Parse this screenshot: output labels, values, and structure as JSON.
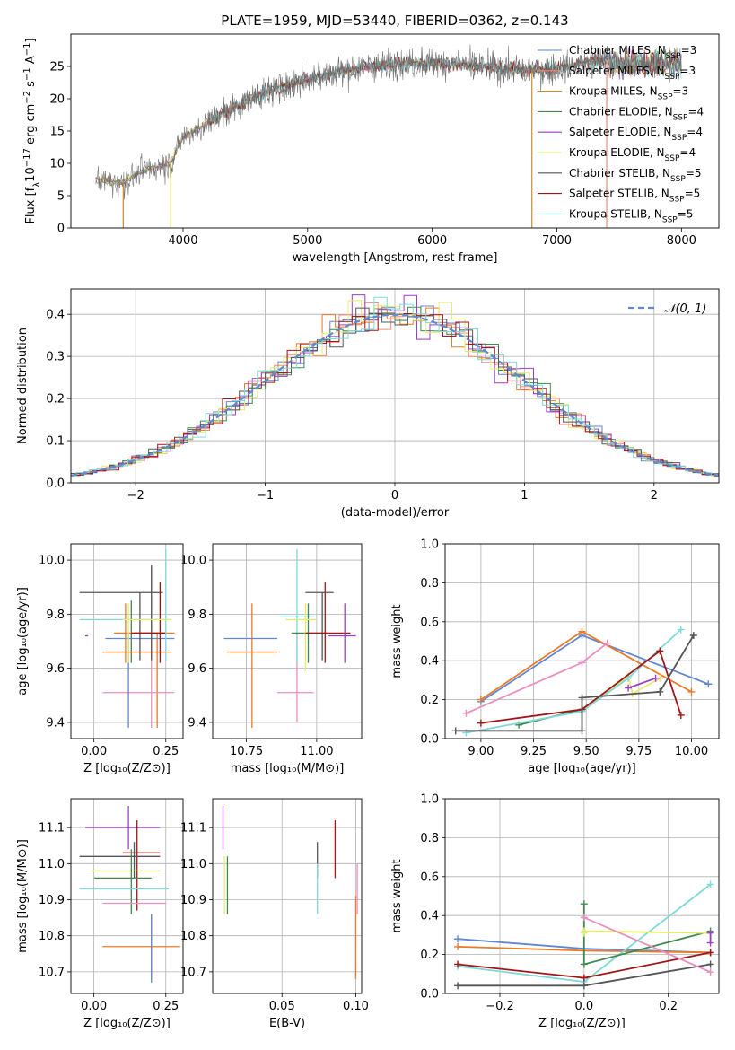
{
  "figure": {
    "title": "PLATE=1959, MJD=53440, FIBERID=0362, z=0.143"
  },
  "colors": {
    "chabrier_miles": "#5f87d3",
    "salpeter_miles": "#f08a77",
    "kroupa_miles": "#c98a2e",
    "chabrier_elodie": "#3f8a4f",
    "salpeter_elodie": "#9b3fc7",
    "kroupa_elodie": "#e7ec6b",
    "chabrier_stelib": "#555555",
    "salpeter_stelib": "#a31515",
    "kroupa_stelib": "#7fd9d9",
    "orange": "#ea7a28",
    "pink": "#e98fc0",
    "green": "#6bb36b",
    "olive": "#a2c33a",
    "blue": "#5f87d3"
  },
  "chart_data": [
    {
      "id": "spectrum",
      "type": "line",
      "xlabel": "wavelength [Angstrom, rest frame]",
      "xlim": [
        3100,
        8300
      ],
      "ylim": [
        0,
        30
      ],
      "xticks": [
        "4000",
        "5000",
        "6000",
        "7000",
        "8000"
      ],
      "yticks": [
        "0",
        "5",
        "10",
        "15",
        "20",
        "25"
      ],
      "legend_position": "upper-right",
      "legend": [
        {
          "base": "Chabrier MILES, N",
          "sub": "SSP",
          "tail": "=3",
          "color": "#5f87d3"
        },
        {
          "base": "Salpeter MILES, N",
          "sub": "SSP",
          "tail": "=3",
          "color": "#f08a77"
        },
        {
          "base": "Kroupa MILES, N",
          "sub": "SSP",
          "tail": "=3",
          "color": "#c98a2e"
        },
        {
          "base": "Chabrier ELODIE, N",
          "sub": "SSP",
          "tail": "=4",
          "color": "#3f8a4f"
        },
        {
          "base": "Salpeter ELODIE, N",
          "sub": "SSP",
          "tail": "=4",
          "color": "#9b3fc7"
        },
        {
          "base": "Kroupa ELODIE, N",
          "sub": "SSP",
          "tail": "=4",
          "color": "#e7ec6b"
        },
        {
          "base": "Chabrier STELIB, N",
          "sub": "SSP",
          "tail": "=5",
          "color": "#555555"
        },
        {
          "base": "Salpeter STELIB, N",
          "sub": "SSP",
          "tail": "=5",
          "color": "#a31515"
        },
        {
          "base": "Kroupa STELIB, N",
          "sub": "SSP",
          "tail": "=5",
          "color": "#7fd9d9"
        }
      ],
      "continuum_x": [
        3300,
        3500,
        3700,
        3900,
        4000,
        4300,
        4600,
        4900,
        5200,
        5500,
        5800,
        6100,
        6400,
        6700,
        7000,
        7200,
        7400
      ],
      "continuum_y": [
        7.5,
        7.0,
        9.0,
        10.0,
        14.0,
        17.5,
        20.5,
        22.5,
        24.0,
        25.0,
        25.5,
        25.5,
        25.0,
        24.5,
        24.5,
        25.5,
        26.0
      ],
      "data_x_range": [
        3300,
        8000
      ],
      "stelib_x_range": [
        4200,
        8000
      ]
    },
    {
      "id": "residuals",
      "type": "step",
      "xlabel": "(data-model)/error",
      "ylabel": "Normed distribution",
      "xlim": [
        -2.5,
        2.5
      ],
      "ylim": [
        0,
        0.46
      ],
      "xticks": [
        "−2",
        "−1",
        "0",
        "1",
        "2"
      ],
      "yticks": [
        "0.0",
        "0.1",
        "0.2",
        "0.3",
        "0.4"
      ],
      "legend_position": "upper-right",
      "legend": [
        {
          "label": "𝒩(0, 1)",
          "color": "#5f87d3"
        }
      ],
      "bin_width": 0.1
    },
    {
      "id": "age-vs-z",
      "type": "errorbar",
      "xlabel": "Z [log₁₀(Z/Z⊙)]",
      "ylabel": "age  [log₁₀(age/yr)]",
      "xlim": [
        -0.08,
        0.31
      ],
      "ylim": [
        9.34,
        10.06
      ],
      "xticks": [
        "0.00",
        "0.25"
      ],
      "yticks": [
        "9.4",
        "9.6",
        "9.8",
        "10.0"
      ],
      "points": [
        {
          "x": 0.13,
          "y": 9.85,
          "xl": 0.0,
          "xh": 0.0,
          "yl": 9.62,
          "yh": 9.85,
          "color": "#3f8a4f"
        },
        {
          "x": 0.22,
          "y": 9.73,
          "xl": 0.07,
          "xh": 0.28,
          "yl": 9.38,
          "yh": 9.73,
          "color": "#ea7a28"
        },
        {
          "x": 0.2,
          "y": 9.51,
          "xl": 0.03,
          "xh": 0.28,
          "yl": 9.38,
          "yh": 9.98,
          "color": "#e98fc0"
        },
        {
          "x": 0.12,
          "y": 9.71,
          "xl": 0.04,
          "xh": 0.28,
          "yl": 9.38,
          "yh": 9.73,
          "color": "#5f87d3"
        },
        {
          "x": 0.11,
          "y": 9.66,
          "xl": 0.03,
          "xh": 0.27,
          "yl": 9.62,
          "yh": 9.84,
          "color": "#ea7a28"
        },
        {
          "x": 0.16,
          "y": 9.88,
          "xl": -0.05,
          "xh": 0.24,
          "yl": 9.63,
          "yh": 9.88,
          "color": "#555555"
        },
        {
          "x": 0.2,
          "y": 9.73,
          "xl": 0.14,
          "xh": 0.25,
          "yl": 9.63,
          "yh": 9.98,
          "color": "#555555"
        },
        {
          "x": 0.23,
          "y": 9.73,
          "xl": 0.13,
          "xh": 0.25,
          "yl": 9.62,
          "yh": 9.92,
          "color": "#a31515"
        },
        {
          "x": 0.25,
          "y": 9.78,
          "xl": -0.05,
          "xh": 0.26,
          "yl": 9.63,
          "yh": 10.04,
          "color": "#7fd9d9"
        },
        {
          "x": 0.12,
          "y": 9.78,
          "xl": 0.1,
          "xh": 0.27,
          "yl": 9.62,
          "yh": 9.84,
          "color": "#e7ec6b"
        },
        {
          "x": -0.02,
          "y": 9.72,
          "xl": -0.03,
          "xh": -0.02,
          "yl": 9.72,
          "yh": 9.72,
          "color": "#9b3fc7"
        }
      ]
    },
    {
      "id": "age-vs-mass",
      "type": "errorbar",
      "xlabel": "mass [log₁₀(M/M⊙)]",
      "xlim": [
        10.63,
        11.16
      ],
      "ylim": [
        9.34,
        10.06
      ],
      "xticks": [
        "10.75",
        "11.00"
      ],
      "yticks": [
        "9.4",
        "9.6",
        "9.8",
        "10.0"
      ],
      "points": [
        {
          "x": 10.77,
          "y": 9.66,
          "xl": 10.68,
          "xh": 10.86,
          "yl": 9.38,
          "yh": 9.84,
          "color": "#ea7a28"
        },
        {
          "x": 10.77,
          "y": 9.71,
          "xl": 10.67,
          "xh": 10.86,
          "yl": 9.71,
          "yh": 9.71,
          "color": "#5f87d3"
        },
        {
          "x": 10.93,
          "y": 9.51,
          "xl": 10.86,
          "xh": 10.99,
          "yl": 9.4,
          "yh": 9.73,
          "color": "#e98fc0"
        },
        {
          "x": 10.93,
          "y": 9.79,
          "xl": 10.87,
          "xh": 10.99,
          "yl": 9.62,
          "yh": 10.04,
          "color": "#7fd9d9"
        },
        {
          "x": 10.97,
          "y": 9.73,
          "xl": 10.91,
          "xh": 11.04,
          "yl": 9.62,
          "yh": 9.84,
          "color": "#3f8a4f"
        },
        {
          "x": 10.96,
          "y": 9.78,
          "xl": 10.89,
          "xh": 11.0,
          "yl": 9.59,
          "yh": 9.84,
          "color": "#e7ec6b"
        },
        {
          "x": 11.02,
          "y": 9.88,
          "xl": 10.96,
          "xh": 11.06,
          "yl": 9.63,
          "yh": 9.88,
          "color": "#555555"
        },
        {
          "x": 11.03,
          "y": 9.73,
          "xl": 10.96,
          "xh": 11.12,
          "yl": 9.62,
          "yh": 9.92,
          "color": "#a31515"
        },
        {
          "x": 11.1,
          "y": 9.72,
          "xl": 11.04,
          "xh": 11.14,
          "yl": 9.62,
          "yh": 9.84,
          "color": "#9b3fc7"
        }
      ]
    },
    {
      "id": "weight-vs-age",
      "type": "line",
      "xlabel": "age  [log₁₀(age/yr)]",
      "ylabel": "mass weight",
      "xlim": [
        8.83,
        10.13
      ],
      "ylim": [
        0,
        1
      ],
      "xticks": [
        "9.00",
        "9.25",
        "9.50",
        "9.75",
        "10.00"
      ],
      "yticks": [
        "0.0",
        "0.2",
        "0.4",
        "0.6",
        "0.8",
        "1.0"
      ],
      "series": [
        {
          "color": "#5f87d3",
          "x": [
            9.0,
            9.48,
            10.08
          ],
          "y": [
            0.19,
            0.53,
            0.28
          ]
        },
        {
          "color": "#ea7a28",
          "x": [
            9.0,
            9.48,
            10.0
          ],
          "y": [
            0.2,
            0.55,
            0.24
          ]
        },
        {
          "color": "#e98fc0",
          "x": [
            8.93,
            9.48,
            9.6
          ],
          "y": [
            0.13,
            0.39,
            0.49
          ]
        },
        {
          "color": "#3f8a4f",
          "x": [
            9.18,
            9.48,
            9.7
          ],
          "y": [
            0.07,
            0.15,
            0.32
          ]
        },
        {
          "color": "#e7ec6b",
          "x": [
            9.48,
            9.7,
            9.72,
            9.85
          ],
          "y": [
            0.15,
            0.32,
            0.23,
            0.31
          ]
        },
        {
          "color": "#7fd9d9",
          "x": [
            8.93,
            9.48,
            9.7,
            9.95
          ],
          "y": [
            0.03,
            0.14,
            0.31,
            0.56
          ]
        },
        {
          "color": "#9b3fc7",
          "x": [
            9.7,
            9.83
          ],
          "y": [
            0.26,
            0.31
          ]
        },
        {
          "color": "#a31515",
          "x": [
            9.0,
            9.48,
            9.85,
            9.95
          ],
          "y": [
            0.08,
            0.15,
            0.45,
            0.12
          ]
        },
        {
          "color": "#555555",
          "x": [
            8.88,
            9.48,
            9.48,
            9.85,
            10.01
          ],
          "y": [
            0.04,
            0.04,
            0.21,
            0.24,
            0.53
          ]
        }
      ]
    },
    {
      "id": "mass-vs-z",
      "type": "errorbar",
      "xlabel": "Z [log₁₀(Z/Z⊙)]",
      "ylabel": "mass [log₁₀(M/M⊙)]",
      "xlim": [
        -0.08,
        0.31
      ],
      "ylim": [
        10.64,
        11.18
      ],
      "xticks": [
        "0.00",
        "0.25"
      ],
      "yticks": [
        "10.7",
        "10.8",
        "10.9",
        "11.0",
        "11.1"
      ],
      "points": [
        {
          "x": 0.12,
          "y": 11.1,
          "xl": -0.03,
          "xh": 0.23,
          "yl": 11.04,
          "yh": 11.16,
          "color": "#9b3fc7"
        },
        {
          "x": 0.15,
          "y": 11.03,
          "xl": 0.1,
          "xh": 0.23,
          "yl": 10.87,
          "yh": 11.12,
          "color": "#a31515"
        },
        {
          "x": 0.14,
          "y": 11.02,
          "xl": -0.05,
          "xh": 0.23,
          "yl": 10.96,
          "yh": 11.06,
          "color": "#555555"
        },
        {
          "x": 0.12,
          "y": 10.98,
          "xl": -0.01,
          "xh": 0.23,
          "yl": 10.98,
          "yh": 10.98,
          "color": "#e7ec6b"
        },
        {
          "x": 0.13,
          "y": 10.96,
          "xl": 0.0,
          "xh": 0.2,
          "yl": 10.86,
          "yh": 11.04,
          "color": "#3f8a4f"
        },
        {
          "x": 0.1,
          "y": 10.93,
          "xl": -0.05,
          "xh": 0.26,
          "yl": 10.93,
          "yh": 10.93,
          "color": "#7fd9d9"
        },
        {
          "x": 0.2,
          "y": 10.89,
          "xl": 0.03,
          "xh": 0.25,
          "yl": 10.89,
          "yh": 10.89,
          "color": "#e98fc0"
        },
        {
          "x": 0.2,
          "y": 10.77,
          "xl": 0.03,
          "xh": 0.3,
          "yl": 10.68,
          "yh": 10.86,
          "color": "#ea7a28"
        },
        {
          "x": 0.2,
          "y": 10.77,
          "xl": 0.2,
          "xh": 0.2,
          "yl": 10.67,
          "yh": 10.86,
          "color": "#5f87d3"
        }
      ]
    },
    {
      "id": "mass-vs-ebv",
      "type": "errorbar",
      "xlabel": "E(B-V)",
      "xlim": [
        0.003,
        0.104
      ],
      "ylim": [
        10.64,
        11.18
      ],
      "xticks": [
        "0.05",
        "0.10"
      ],
      "yticks": [
        "10.7",
        "10.8",
        "10.9",
        "11.0",
        "11.1"
      ],
      "points": [
        {
          "x": 0.01,
          "y": 11.1,
          "xl": 0.01,
          "xh": 0.01,
          "yl": 11.04,
          "yh": 11.16,
          "color": "#9b3fc7"
        },
        {
          "x": 0.011,
          "y": 10.96,
          "xl": 0.011,
          "xh": 0.011,
          "yl": 10.86,
          "yh": 11.02,
          "color": "#e7ec6b"
        },
        {
          "x": 0.013,
          "y": 10.96,
          "xl": 0.013,
          "xh": 0.013,
          "yl": 10.86,
          "yh": 11.02,
          "color": "#3f8a4f"
        },
        {
          "x": 0.074,
          "y": 11.02,
          "xl": 0.074,
          "xh": 0.074,
          "yl": 10.96,
          "yh": 11.06,
          "color": "#555555"
        },
        {
          "x": 0.074,
          "y": 10.93,
          "xl": 0.074,
          "xh": 0.074,
          "yl": 10.86,
          "yh": 11.0,
          "color": "#7fd9d9"
        },
        {
          "x": 0.086,
          "y": 11.04,
          "xl": 0.086,
          "xh": 0.086,
          "yl": 10.96,
          "yh": 11.12,
          "color": "#a31515"
        },
        {
          "x": 0.1,
          "y": 10.77,
          "xl": 0.1,
          "xh": 0.1,
          "yl": 10.68,
          "yh": 10.91,
          "color": "#ea7a28"
        },
        {
          "x": 0.101,
          "y": 10.93,
          "xl": 0.101,
          "xh": 0.101,
          "yl": 10.86,
          "yh": 11.0,
          "color": "#e98fc0"
        }
      ]
    },
    {
      "id": "weight-vs-z",
      "type": "line",
      "xlabel": "Z [log₁₀(Z/Z⊙)]",
      "ylabel": "mass weight",
      "xlim": [
        -0.33,
        0.32
      ],
      "ylim": [
        0,
        1
      ],
      "xticks": [
        "−0.2",
        "0.0",
        "0.2"
      ],
      "yticks": [
        "0.0",
        "0.2",
        "0.4",
        "0.6",
        "0.8",
        "1.0"
      ],
      "series": [
        {
          "color": "#5f87d3",
          "x": [
            -0.3,
            0.0,
            0.3
          ],
          "y": [
            0.28,
            0.23,
            0.21
          ]
        },
        {
          "color": "#ea7a28",
          "x": [
            -0.3,
            0.0,
            0.3
          ],
          "y": [
            0.24,
            0.22,
            0.21
          ]
        },
        {
          "color": "#7fd9d9",
          "x": [
            -0.3,
            0.0,
            0.3
          ],
          "y": [
            0.14,
            0.06,
            0.56
          ]
        },
        {
          "color": "#a31515",
          "x": [
            -0.3,
            0.0,
            0.3
          ],
          "y": [
            0.15,
            0.08,
            0.21
          ]
        },
        {
          "color": "#555555",
          "x": [
            -0.3,
            0.0,
            0.3
          ],
          "y": [
            0.04,
            0.04,
            0.15
          ]
        },
        {
          "color": "#3f8a4f",
          "x": [
            0.0,
            0.0,
            0.3
          ],
          "y": [
            0.46,
            0.15,
            0.32
          ]
        },
        {
          "color": "#e7ec6b",
          "x": [
            0.0,
            0.0,
            0.3
          ],
          "y": [
            0.31,
            0.32,
            0.31
          ]
        },
        {
          "color": "#e98fc0",
          "x": [
            0.0,
            0.3
          ],
          "y": [
            0.39,
            0.11
          ]
        },
        {
          "color": "#9b3fc7",
          "x": [
            0.3,
            0.3
          ],
          "y": [
            0.31,
            0.26
          ]
        }
      ]
    }
  ]
}
